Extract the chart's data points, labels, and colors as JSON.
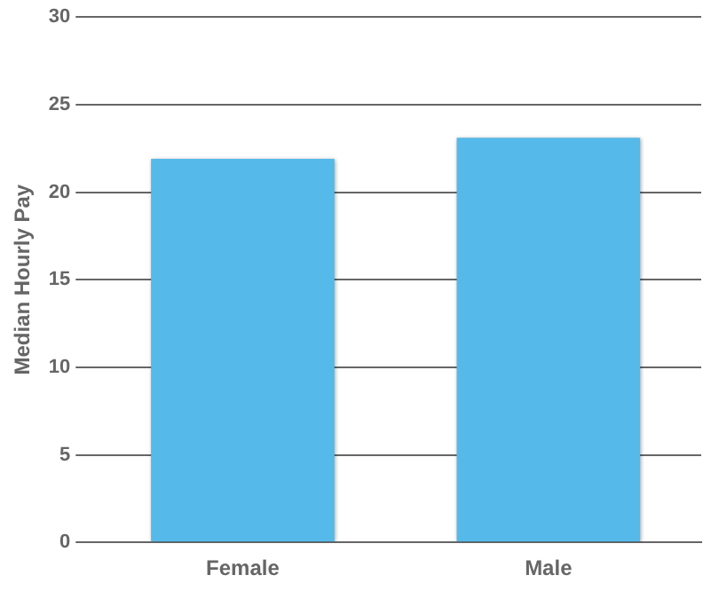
{
  "chart_data": {
    "type": "bar",
    "ylabel": "Median Hourly Pay",
    "categories": [
      "Female",
      "Male"
    ],
    "values": [
      21.9,
      23.1
    ],
    "color": "#55b9e9",
    "ylim": [
      0,
      30
    ],
    "yticks": [
      0,
      5,
      10,
      15,
      20,
      25,
      30
    ],
    "grid": "y",
    "legend": false
  }
}
